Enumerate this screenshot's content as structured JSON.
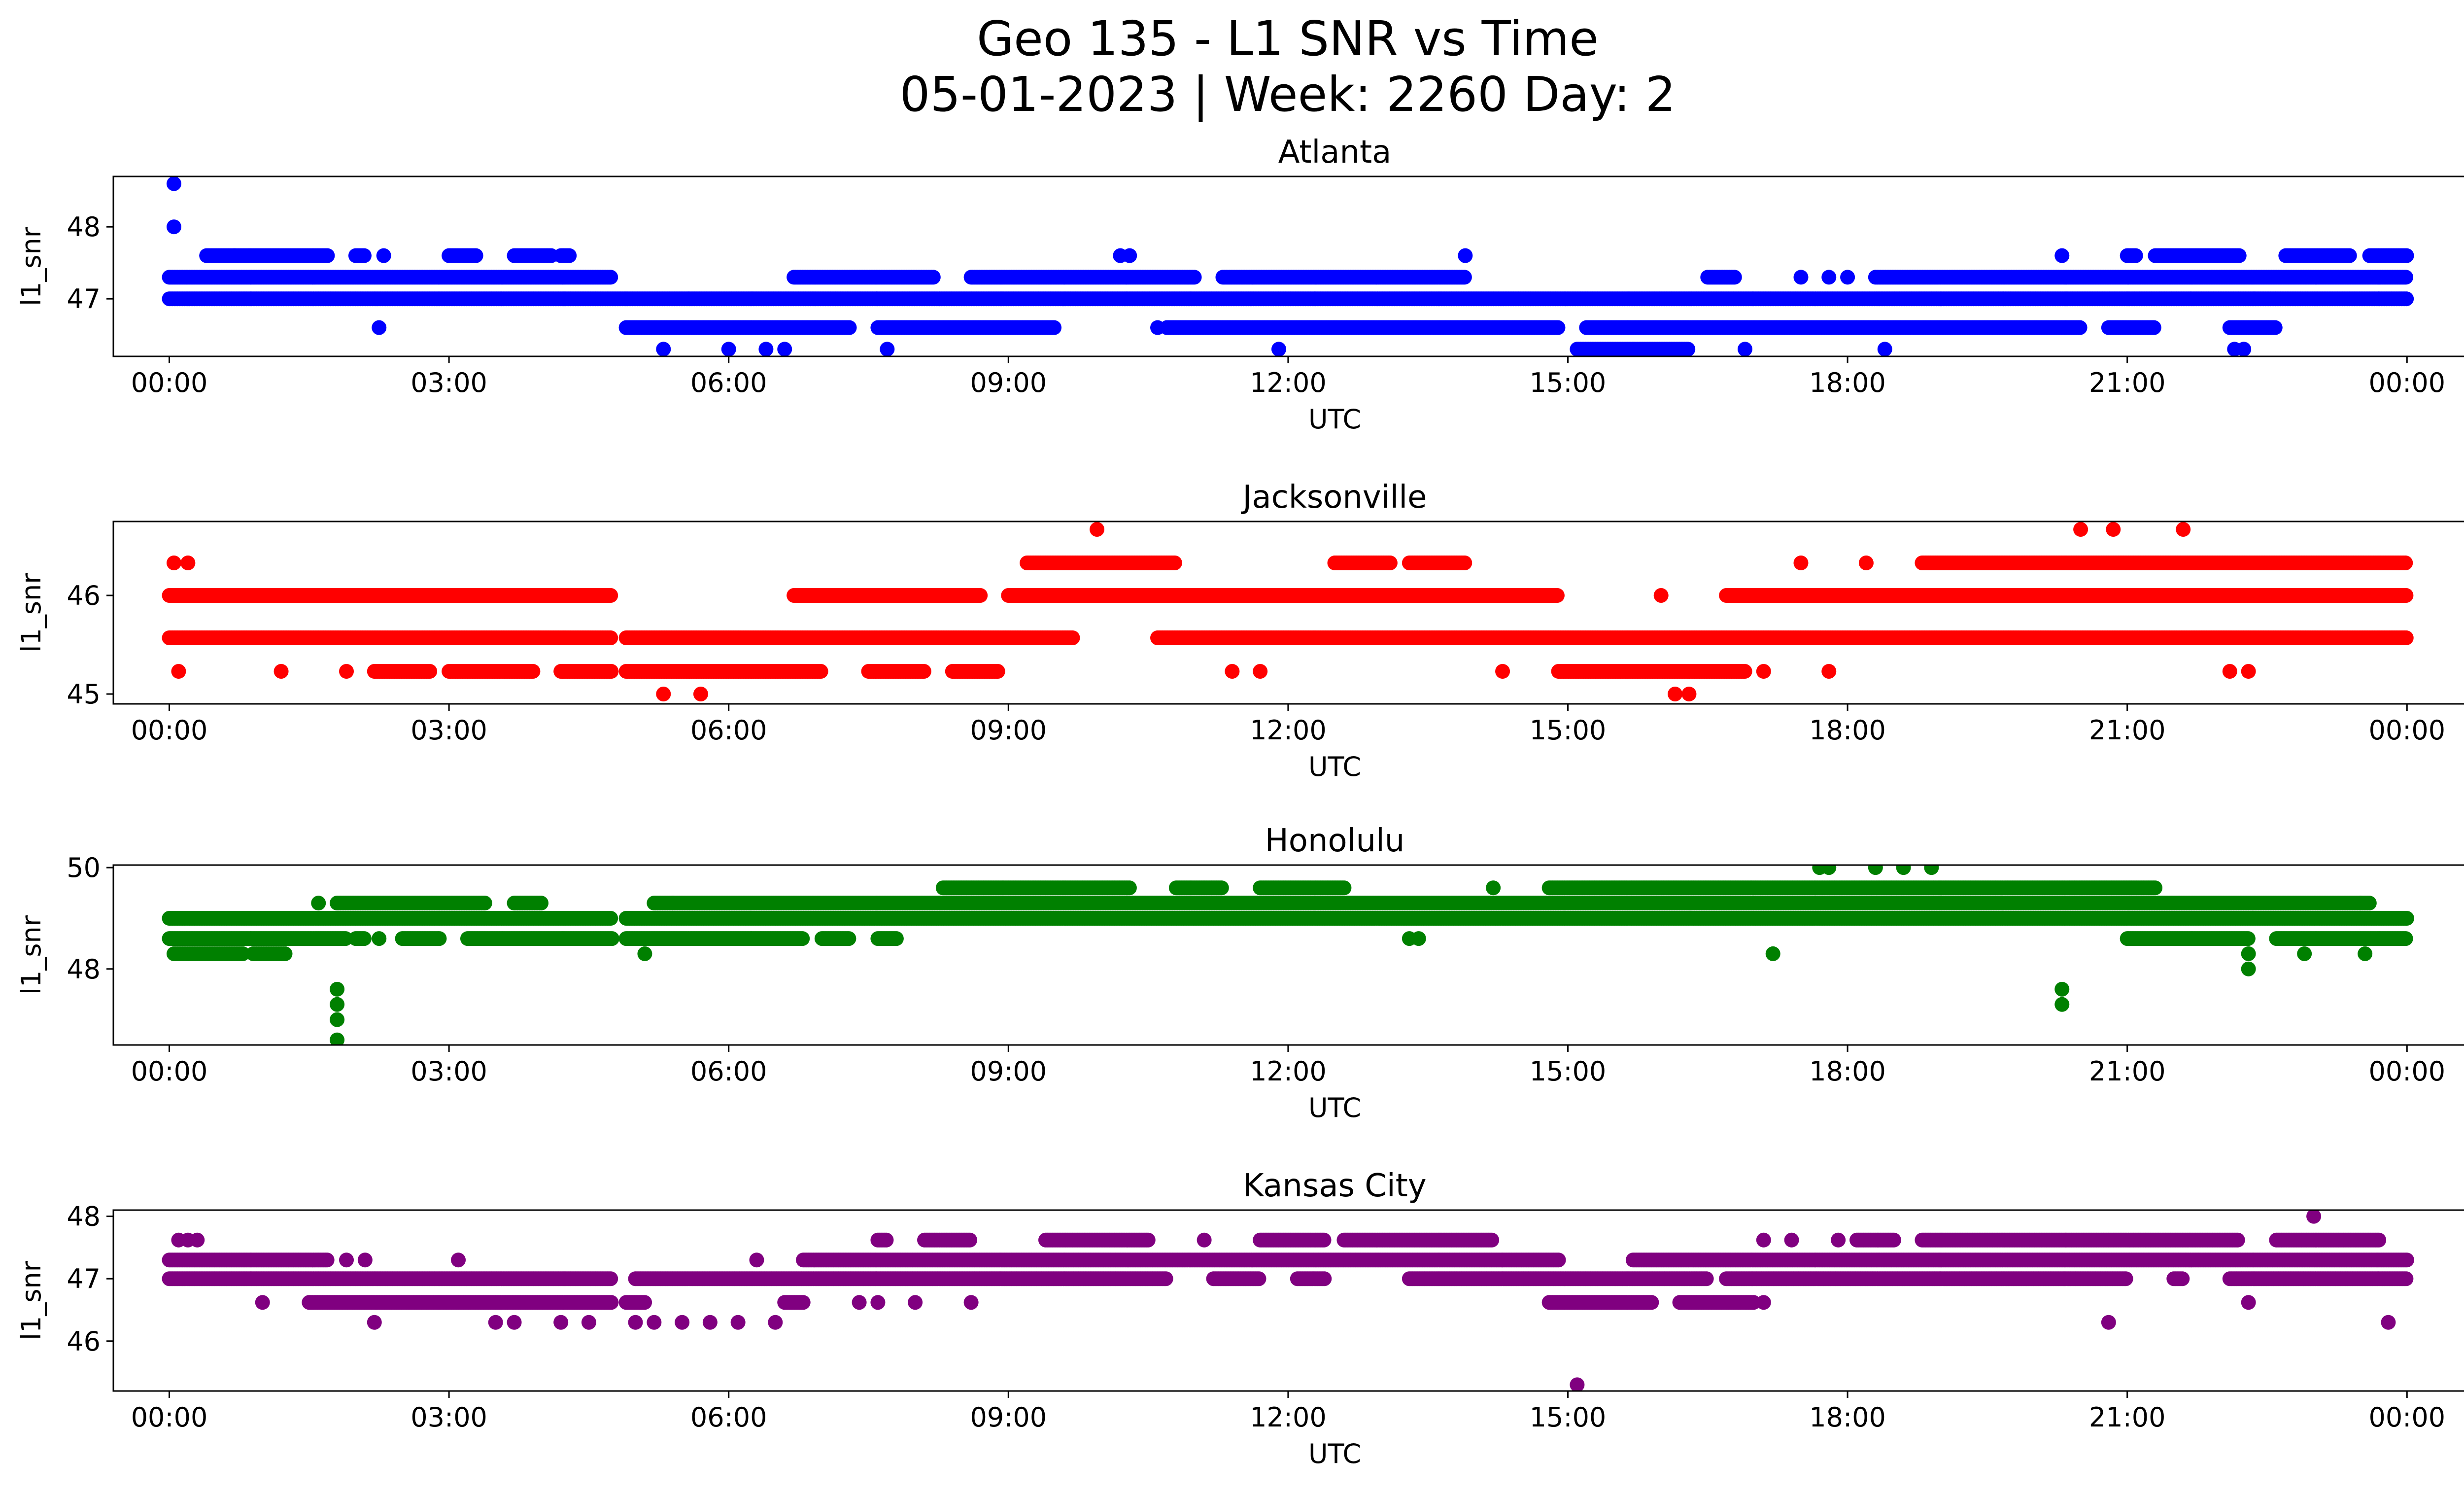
{
  "figure": {
    "title_line1": "Geo 135 - L1 SNR vs Time",
    "title_line2": "05-01-2023 | Week: 2260 Day: 2"
  },
  "chart_data": [
    {
      "type": "scatter",
      "title": "Atlanta",
      "xlabel": "UTC",
      "ylabel": "l1_snr",
      "color": "#0000ff",
      "xlim": [
        -0.6,
        25.6
      ],
      "ylim": [
        46.2,
        48.7
      ],
      "xticks": [
        0,
        3,
        6,
        9,
        12,
        15,
        18,
        21,
        24
      ],
      "xtick_labels": [
        "00:00",
        "03:00",
        "06:00",
        "09:00",
        "12:00",
        "15:00",
        "18:00",
        "21:00",
        "00:00"
      ],
      "yticks": [
        47,
        48
      ],
      "ytick_labels": [
        "47",
        "48"
      ],
      "bands": [
        {
          "y": 47.3,
          "segments": [
            [
              0,
              4.75
            ],
            [
              6.7,
              8.2
            ],
            [
              8.6,
              11.0
            ],
            [
              11.3,
              13.9
            ],
            [
              16.5,
              16.8
            ],
            [
              18.3,
              24.0
            ]
          ]
        },
        {
          "y": 47.0,
          "segments": [
            [
              0,
              24.0
            ]
          ]
        },
        {
          "y": 46.6,
          "segments": [
            [
              4.9,
              7.3
            ],
            [
              7.6,
              9.5
            ],
            [
              10.7,
              14.9
            ],
            [
              15.2,
              20.5
            ],
            [
              20.8,
              21.3
            ],
            [
              22.1,
              22.6
            ]
          ]
        },
        {
          "y": 47.6,
          "segments": [
            [
              0.4,
              1.7
            ],
            [
              2.0,
              2.1
            ],
            [
              3.0,
              3.3
            ],
            [
              3.7,
              4.1
            ],
            [
              4.2,
              4.3
            ],
            [
              20.3,
              20.3
            ],
            [
              21.0,
              21.1
            ],
            [
              21.3,
              22.2
            ],
            [
              22.7,
              23.4
            ],
            [
              23.6,
              24.0
            ]
          ]
        },
        {
          "y": 46.3,
          "segments": [
            [
              15.1,
              16.3
            ]
          ]
        }
      ],
      "points": [
        [
          0.05,
          48.6
        ],
        [
          0.05,
          48.0
        ],
        [
          0.7,
          47.6
        ],
        [
          2.25,
          46.6
        ],
        [
          2.3,
          47.6
        ],
        [
          5.3,
          46.3
        ],
        [
          6.0,
          46.3
        ],
        [
          6.4,
          46.3
        ],
        [
          6.6,
          46.3
        ],
        [
          7.7,
          46.3
        ],
        [
          10.2,
          47.6
        ],
        [
          10.3,
          47.6
        ],
        [
          10.6,
          46.6
        ],
        [
          11.9,
          46.3
        ],
        [
          13.9,
          47.6
        ],
        [
          15.7,
          46.3
        ],
        [
          16.9,
          46.3
        ],
        [
          18.4,
          46.3
        ],
        [
          22.15,
          46.3
        ],
        [
          22.25,
          46.3
        ],
        [
          17.5,
          47.3
        ],
        [
          17.8,
          47.3
        ],
        [
          18.0,
          47.3
        ]
      ]
    },
    {
      "type": "scatter",
      "title": "Jacksonville",
      "xlabel": "UTC",
      "ylabel": "l1_snr",
      "color": "#ff0000",
      "xlim": [
        -0.6,
        25.6
      ],
      "ylim": [
        44.9,
        46.75
      ],
      "xticks": [
        0,
        3,
        6,
        9,
        12,
        15,
        18,
        21,
        24
      ],
      "xtick_labels": [
        "00:00",
        "03:00",
        "06:00",
        "09:00",
        "12:00",
        "15:00",
        "18:00",
        "21:00",
        "00:00"
      ],
      "yticks": [
        45,
        46
      ],
      "ytick_labels": [
        "45",
        "46"
      ],
      "bands": [
        {
          "y": 46.0,
          "segments": [
            [
              0,
              4.75
            ],
            [
              6.7,
              8.7
            ],
            [
              9.0,
              14.9
            ],
            [
              16.7,
              24.0
            ]
          ]
        },
        {
          "y": 45.57,
          "segments": [
            [
              0,
              4.75
            ],
            [
              4.9,
              9.7
            ],
            [
              10.6,
              24.0
            ]
          ]
        },
        {
          "y": 45.23,
          "segments": [
            [
              2.2,
              2.8
            ],
            [
              3.0,
              3.9
            ],
            [
              4.2,
              4.75
            ],
            [
              4.9,
              7.0
            ],
            [
              7.5,
              8.1
            ],
            [
              8.4,
              8.9
            ],
            [
              14.9,
              16.9
            ]
          ]
        },
        {
          "y": 46.33,
          "segments": [
            [
              9.2,
              10.8
            ],
            [
              12.5,
              13.1
            ],
            [
              13.3,
              13.9
            ],
            [
              18.8,
              24.0
            ]
          ]
        }
      ],
      "points": [
        [
          0.05,
          46.33
        ],
        [
          0.2,
          46.33
        ],
        [
          0.1,
          45.23
        ],
        [
          1.2,
          45.23
        ],
        [
          1.9,
          45.23
        ],
        [
          5.3,
          45.0
        ],
        [
          5.7,
          45.0
        ],
        [
          9.95,
          46.67
        ],
        [
          11.4,
          45.23
        ],
        [
          11.7,
          45.23
        ],
        [
          14.3,
          45.23
        ],
        [
          16.15,
          45.0
        ],
        [
          16.3,
          45.0
        ],
        [
          16.0,
          46.0
        ],
        [
          17.1,
          45.23
        ],
        [
          17.8,
          45.23
        ],
        [
          17.5,
          46.33
        ],
        [
          18.2,
          46.33
        ],
        [
          20.5,
          46.67
        ],
        [
          20.85,
          46.67
        ],
        [
          21.6,
          46.67
        ],
        [
          22.1,
          45.23
        ],
        [
          22.3,
          45.23
        ]
      ]
    },
    {
      "type": "scatter",
      "title": "Honolulu",
      "xlabel": "UTC",
      "ylabel": "l1_snr",
      "color": "#008000",
      "xlim": [
        -0.6,
        25.6
      ],
      "ylim": [
        46.5,
        50.05
      ],
      "xticks": [
        0,
        3,
        6,
        9,
        12,
        15,
        18,
        21,
        24
      ],
      "xtick_labels": [
        "00:00",
        "03:00",
        "06:00",
        "09:00",
        "12:00",
        "15:00",
        "18:00",
        "21:00",
        "00:00"
      ],
      "yticks": [
        48,
        50
      ],
      "ytick_labels": [
        "48",
        "50"
      ],
      "bands": [
        {
          "y": 48.6,
          "segments": [
            [
              0,
              1.9
            ],
            [
              2.0,
              2.1
            ],
            [
              2.5,
              2.9
            ],
            [
              3.2,
              4.75
            ],
            [
              4.9,
              6.8
            ],
            [
              7.0,
              7.3
            ],
            [
              7.6,
              7.8
            ],
            [
              21.0,
              22.3
            ],
            [
              22.6,
              24.0
            ]
          ]
        },
        {
          "y": 49.0,
          "segments": [
            [
              0,
              4.75
            ],
            [
              4.9,
              24.0
            ]
          ]
        },
        {
          "y": 48.3,
          "segments": [
            [
              0.05,
              0.8
            ],
            [
              0.9,
              1.25
            ]
          ]
        },
        {
          "y": 49.3,
          "segments": [
            [
              1.8,
              3.4
            ],
            [
              5.2,
              23.6
            ],
            [
              3.7,
              4.0
            ]
          ]
        },
        {
          "y": 49.6,
          "segments": [
            [
              8.3,
              10.3
            ],
            [
              10.8,
              11.3
            ],
            [
              11.7,
              12.6
            ],
            [
              14.8,
              21.3
            ]
          ]
        }
      ],
      "points": [
        [
          1.6,
          49.3
        ],
        [
          1.8,
          47.6
        ],
        [
          1.8,
          47.3
        ],
        [
          1.8,
          47.0
        ],
        [
          1.8,
          46.6
        ],
        [
          2.25,
          48.6
        ],
        [
          5.1,
          48.3
        ],
        [
          5.4,
          49.3
        ],
        [
          13.3,
          48.6
        ],
        [
          13.4,
          48.6
        ],
        [
          14.2,
          49.6
        ],
        [
          17.2,
          48.3
        ],
        [
          17.7,
          50.0
        ],
        [
          17.8,
          50.0
        ],
        [
          18.3,
          50.0
        ],
        [
          18.6,
          50.0
        ],
        [
          18.9,
          50.0
        ],
        [
          20.3,
          47.6
        ],
        [
          20.3,
          47.3
        ],
        [
          22.3,
          48.0
        ],
        [
          22.3,
          48.3
        ],
        [
          22.9,
          48.3
        ],
        [
          23.5,
          49.3
        ],
        [
          23.55,
          48.3
        ]
      ]
    },
    {
      "type": "scatter",
      "title": "Kansas City",
      "xlabel": "UTC",
      "ylabel": "l1_snr",
      "color": "#800080",
      "xlim": [
        -0.6,
        25.6
      ],
      "ylim": [
        45.2,
        48.1
      ],
      "xticks": [
        0,
        3,
        6,
        9,
        12,
        15,
        18,
        21,
        24
      ],
      "xtick_labels": [
        "00:00",
        "03:00",
        "06:00",
        "09:00",
        "12:00",
        "15:00",
        "18:00",
        "21:00",
        "00:00"
      ],
      "yticks": [
        46,
        47,
        48
      ],
      "ytick_labels": [
        "46",
        "47",
        "48"
      ],
      "bands": [
        {
          "y": 47.3,
          "segments": [
            [
              0,
              1.7
            ],
            [
              6.8,
              14.9
            ],
            [
              15.7,
              24.0
            ]
          ]
        },
        {
          "y": 47.0,
          "segments": [
            [
              0,
              4.75
            ],
            [
              5.0,
              10.7
            ],
            [
              11.2,
              11.7
            ],
            [
              12.1,
              12.4
            ],
            [
              13.3,
              16.5
            ],
            [
              16.7,
              21.0
            ],
            [
              21.5,
              21.6
            ],
            [
              22.1,
              24.0
            ]
          ]
        },
        {
          "y": 46.62,
          "segments": [
            [
              1.5,
              4.75
            ],
            [
              4.9,
              5.1
            ],
            [
              6.6,
              6.8
            ],
            [
              14.8,
              15.9
            ],
            [
              16.2,
              17.0
            ]
          ]
        },
        {
          "y": 47.62,
          "segments": [
            [
              7.6,
              7.7
            ],
            [
              8.1,
              8.6
            ],
            [
              9.4,
              10.5
            ],
            [
              11.7,
              12.4
            ],
            [
              12.6,
              14.2
            ],
            [
              18.1,
              18.5
            ],
            [
              18.8,
              22.2
            ],
            [
              22.6,
              23.7
            ]
          ]
        }
      ],
      "points": [
        [
          0.1,
          47.62
        ],
        [
          0.2,
          47.62
        ],
        [
          0.3,
          47.62
        ],
        [
          1.0,
          46.62
        ],
        [
          1.9,
          47.3
        ],
        [
          2.1,
          47.3
        ],
        [
          2.2,
          46.3
        ],
        [
          3.1,
          47.3
        ],
        [
          3.5,
          46.3
        ],
        [
          3.7,
          46.3
        ],
        [
          4.2,
          46.3
        ],
        [
          4.5,
          46.3
        ],
        [
          5.0,
          46.3
        ],
        [
          5.2,
          46.3
        ],
        [
          5.5,
          46.3
        ],
        [
          5.8,
          46.3
        ],
        [
          6.1,
          46.3
        ],
        [
          6.5,
          46.3
        ],
        [
          6.3,
          47.3
        ],
        [
          7.4,
          46.62
        ],
        [
          7.6,
          46.62
        ],
        [
          8.0,
          46.62
        ],
        [
          8.6,
          46.62
        ],
        [
          11.1,
          47.62
        ],
        [
          15.1,
          45.3
        ],
        [
          17.1,
          46.62
        ],
        [
          17.1,
          47.62
        ],
        [
          17.4,
          47.62
        ],
        [
          17.9,
          47.62
        ],
        [
          20.8,
          46.3
        ],
        [
          22.3,
          46.62
        ],
        [
          23.0,
          48.0
        ],
        [
          23.8,
          46.3
        ]
      ]
    }
  ]
}
